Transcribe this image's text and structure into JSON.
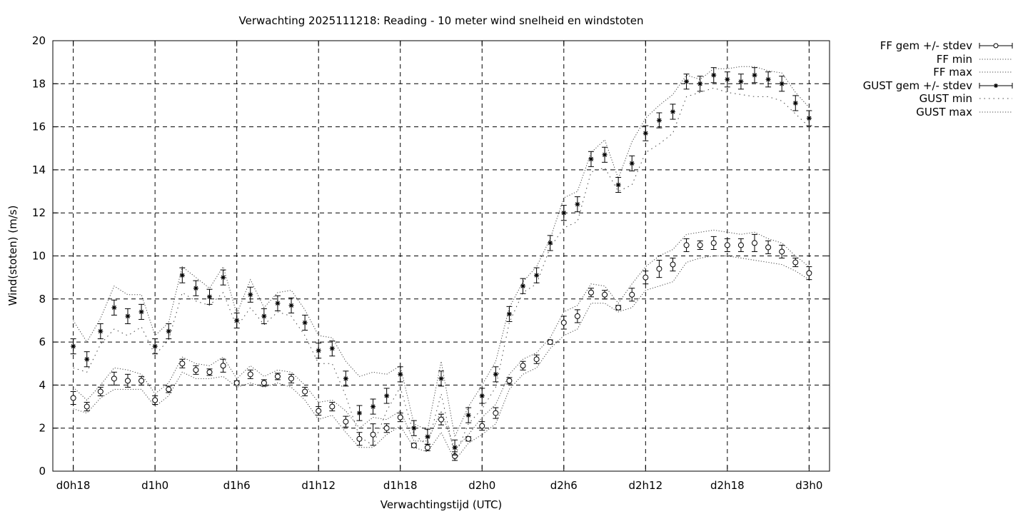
{
  "chart_data": {
    "type": "line",
    "title": "Verwachting 2025111218: Reading - 10 meter wind snelheid en windstoten",
    "xlabel": "Verwachtingstijd (UTC)",
    "ylabel": "Wind(stoten) (m/s)",
    "x_unit": "hours since d0h18",
    "xlim": [
      -1.5,
      55.5
    ],
    "ylim": [
      0,
      20
    ],
    "yticks": [
      0,
      2,
      4,
      6,
      8,
      10,
      12,
      14,
      16,
      18,
      20
    ],
    "xticks": [
      {
        "x": 0,
        "label": "d0h18"
      },
      {
        "x": 6,
        "label": "d1h0"
      },
      {
        "x": 12,
        "label": "d1h6"
      },
      {
        "x": 18,
        "label": "d1h12"
      },
      {
        "x": 24,
        "label": "d1h18"
      },
      {
        "x": 30,
        "label": "d2h0"
      },
      {
        "x": 36,
        "label": "d2h6"
      },
      {
        "x": 42,
        "label": "d2h12"
      },
      {
        "x": 48,
        "label": "d2h18"
      },
      {
        "x": 54,
        "label": "d3h0"
      }
    ],
    "grid": true,
    "legend_position": "outside-right",
    "x": [
      0,
      1,
      2,
      3,
      4,
      5,
      6,
      7,
      8,
      9,
      10,
      11,
      12,
      13,
      14,
      15,
      16,
      17,
      18,
      19,
      20,
      21,
      22,
      23,
      24,
      25,
      26,
      27,
      28,
      29,
      30,
      31,
      32,
      33,
      34,
      35,
      36,
      37,
      38,
      39,
      40,
      41,
      42,
      43,
      44,
      45,
      46,
      47,
      48,
      49,
      50,
      51,
      52,
      53,
      54
    ],
    "series": [
      {
        "name": "FF gem +/- stdev",
        "style": "errorbar-circle",
        "values": [
          3.4,
          3.0,
          3.7,
          4.3,
          4.2,
          4.2,
          3.3,
          3.8,
          5.0,
          4.7,
          4.6,
          4.9,
          4.1,
          4.5,
          4.1,
          4.4,
          4.3,
          3.7,
          2.8,
          3.0,
          2.3,
          1.5,
          1.7,
          2.0,
          2.5,
          1.2,
          1.1,
          2.4,
          0.7,
          1.5,
          2.1,
          2.7,
          4.2,
          4.9,
          5.2,
          6.0,
          6.9,
          7.2,
          8.3,
          8.2,
          7.6,
          8.2,
          9.0,
          9.4,
          9.6,
          10.5,
          10.5,
          10.6,
          10.5,
          10.5,
          10.6,
          10.4,
          10.2,
          9.7,
          9.2
        ],
        "stdev": [
          0.3,
          0.2,
          0.2,
          0.3,
          0.3,
          0.2,
          0.2,
          0.15,
          0.2,
          0.2,
          0.15,
          0.3,
          0.1,
          0.2,
          0.15,
          0.15,
          0.2,
          0.2,
          0.2,
          0.2,
          0.25,
          0.3,
          0.5,
          0.2,
          0.2,
          0.1,
          0.15,
          0.25,
          0.2,
          0.1,
          0.2,
          0.25,
          0.15,
          0.2,
          0.2,
          0.1,
          0.3,
          0.3,
          0.2,
          0.2,
          0.1,
          0.3,
          0.3,
          0.4,
          0.3,
          0.3,
          0.2,
          0.3,
          0.3,
          0.3,
          0.4,
          0.3,
          0.3,
          0.2,
          0.3
        ]
      },
      {
        "name": "FF min",
        "style": "dotted",
        "values": [
          2.9,
          2.7,
          3.4,
          3.8,
          3.8,
          3.8,
          3.0,
          3.5,
          4.6,
          4.3,
          4.3,
          4.4,
          3.9,
          4.1,
          3.9,
          4.1,
          3.9,
          3.3,
          2.4,
          2.6,
          1.8,
          1.1,
          1.1,
          1.7,
          2.1,
          1.1,
          0.9,
          1.8,
          0.5,
          1.3,
          1.7,
          2.2,
          3.8,
          4.5,
          4.8,
          5.7,
          6.3,
          6.6,
          7.8,
          7.8,
          7.4,
          7.6,
          8.4,
          8.6,
          8.8,
          9.7,
          9.9,
          10.0,
          10.0,
          9.9,
          9.8,
          9.7,
          9.6,
          9.3,
          8.9
        ]
      },
      {
        "name": "FF max",
        "style": "dotted",
        "values": [
          3.9,
          3.3,
          4.0,
          4.8,
          4.7,
          4.5,
          3.6,
          4.1,
          5.3,
          5.0,
          4.9,
          5.3,
          4.3,
          4.9,
          4.4,
          4.7,
          4.6,
          4.0,
          3.2,
          3.3,
          2.8,
          2.0,
          2.5,
          2.4,
          2.8,
          1.4,
          1.4,
          2.8,
          1.0,
          1.7,
          2.5,
          3.1,
          4.5,
          5.2,
          5.5,
          6.2,
          7.4,
          7.7,
          8.7,
          8.6,
          7.8,
          8.7,
          9.5,
          10.0,
          10.3,
          11.0,
          11.1,
          11.2,
          11.1,
          11.0,
          11.1,
          10.8,
          10.6,
          10.0,
          9.5
        ]
      },
      {
        "name": "GUST gem +/- stdev",
        "style": "errorbar-star",
        "values": [
          5.8,
          5.2,
          6.5,
          7.6,
          7.2,
          7.4,
          5.8,
          6.5,
          9.1,
          8.5,
          8.1,
          9.0,
          7.0,
          8.2,
          7.2,
          7.8,
          7.7,
          6.9,
          5.6,
          5.7,
          4.3,
          2.7,
          3.0,
          3.5,
          4.5,
          2.0,
          1.6,
          4.3,
          1.1,
          2.6,
          3.5,
          4.5,
          7.3,
          8.6,
          9.1,
          10.6,
          12.0,
          12.4,
          14.5,
          14.7,
          13.3,
          14.3,
          15.7,
          16.3,
          16.7,
          18.1,
          18.0,
          18.4,
          18.2,
          18.1,
          18.4,
          18.2,
          18.0,
          17.1,
          16.4
        ]
      },
      {
        "name": "GUST min",
        "style": "dotted-sparse",
        "values": [
          4.8,
          4.6,
          5.9,
          6.6,
          6.3,
          6.7,
          5.4,
          6.1,
          8.3,
          7.9,
          7.7,
          8.3,
          6.7,
          7.6,
          6.8,
          7.4,
          7.2,
          6.3,
          5.0,
          5.0,
          3.5,
          1.6,
          1.2,
          2.8,
          3.9,
          1.7,
          1.2,
          3.6,
          0.7,
          2.2,
          2.9,
          3.9,
          6.9,
          8.3,
          8.7,
          10.4,
          11.3,
          11.6,
          13.9,
          14.1,
          13.0,
          13.3,
          14.8,
          15.2,
          15.7,
          17.4,
          17.6,
          17.8,
          17.6,
          17.5,
          17.4,
          17.4,
          17.2,
          16.6,
          16.0
        ]
      },
      {
        "name": "GUST max",
        "style": "dotted",
        "values": [
          7.0,
          6.0,
          7.1,
          8.6,
          8.2,
          8.2,
          6.3,
          6.9,
          9.5,
          9.0,
          8.5,
          9.5,
          7.3,
          8.9,
          7.6,
          8.3,
          8.4,
          7.5,
          6.3,
          6.2,
          5.1,
          4.4,
          4.6,
          4.5,
          4.9,
          2.2,
          1.9,
          5.1,
          1.6,
          3.0,
          4.0,
          5.1,
          7.6,
          8.8,
          9.5,
          10.8,
          12.7,
          13.0,
          14.8,
          15.4,
          13.6,
          15.3,
          16.4,
          17.0,
          17.5,
          18.4,
          18.2,
          18.7,
          18.7,
          18.8,
          18.8,
          18.6,
          18.5,
          17.6,
          16.9
        ]
      }
    ]
  }
}
